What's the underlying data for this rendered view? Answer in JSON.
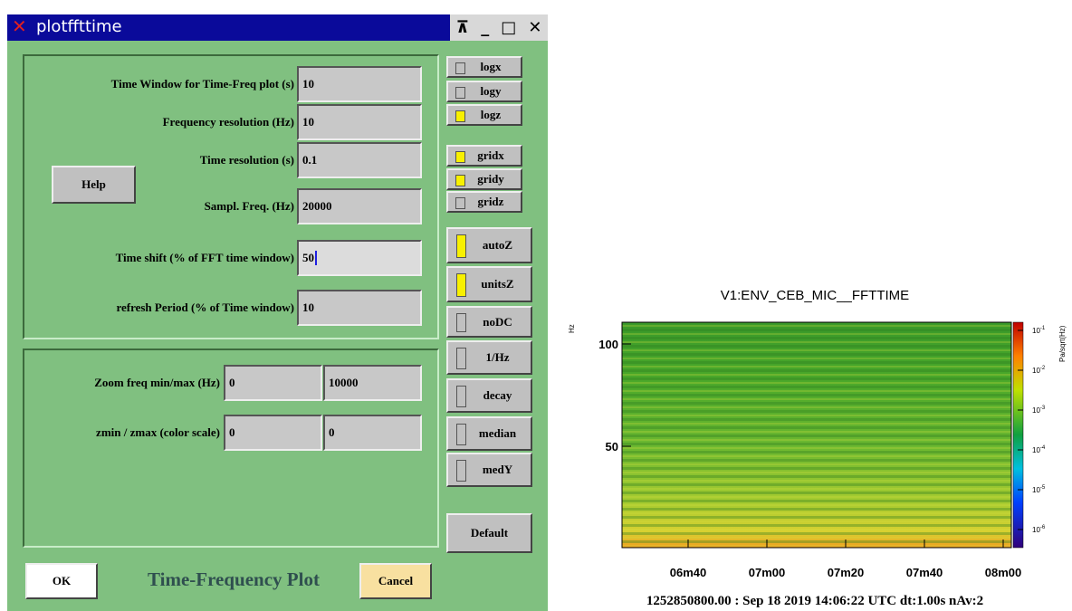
{
  "dialog": {
    "title": "plotffttime",
    "fields": [
      {
        "label": "Time Window for Time-Freq plot (s)",
        "value": "10"
      },
      {
        "label": "Frequency resolution (Hz)",
        "value": "10"
      },
      {
        "label": "Time resolution (s)",
        "value": "0.1"
      },
      {
        "label": "Sampl. Freq. (Hz)",
        "value": "20000"
      },
      {
        "label": "Time shift (% of FFT time window)",
        "value": "50"
      },
      {
        "label": "refresh Period (% of Time window)",
        "value": "10"
      }
    ],
    "help": "Help",
    "zoom": {
      "label": "Zoom freq min/max (Hz)",
      "min": "0",
      "max": "10000"
    },
    "zscale": {
      "label": "zmin / zmax (color scale)",
      "min": "0",
      "max": "0"
    },
    "checkboxes": [
      {
        "label": "logx",
        "checked": false
      },
      {
        "label": "logy",
        "checked": false
      },
      {
        "label": "logz",
        "checked": true
      },
      {
        "label": "gridx",
        "checked": true
      },
      {
        "label": "gridy",
        "checked": true
      },
      {
        "label": "gridz",
        "checked": false
      }
    ],
    "toggles": [
      {
        "label": "autoZ",
        "checked": true
      },
      {
        "label": "unitsZ",
        "checked": true
      },
      {
        "label": "noDC",
        "checked": false
      },
      {
        "label": "1/Hz",
        "checked": false
      },
      {
        "label": "decay",
        "checked": false
      },
      {
        "label": "median",
        "checked": false
      },
      {
        "label": "medY",
        "checked": false
      }
    ],
    "default": "Default",
    "ok": "OK",
    "caption": "Time-Frequency Plot",
    "cancel": "Cancel"
  },
  "plot": {
    "title": "V1:ENV_CEB_MIC__FFTTIME",
    "y_label": "Hz",
    "yticks": [
      "100",
      "50"
    ],
    "xticks": [
      "06m40",
      "07m00",
      "07m20",
      "07m40",
      "08m00"
    ],
    "colorbar_label": "Pa/sqrt(Hz)",
    "colorbar_ticks": [
      {
        "base": "10",
        "exp": "-1"
      },
      {
        "base": "10",
        "exp": "-2"
      },
      {
        "base": "10",
        "exp": "-3"
      },
      {
        "base": "10",
        "exp": "-4"
      },
      {
        "base": "10",
        "exp": "-5"
      },
      {
        "base": "10",
        "exp": "-6"
      }
    ],
    "footer": "1252850800.00 : Sep 18 2019 14:06:22 UTC dt:1.00s nAv:2"
  }
}
